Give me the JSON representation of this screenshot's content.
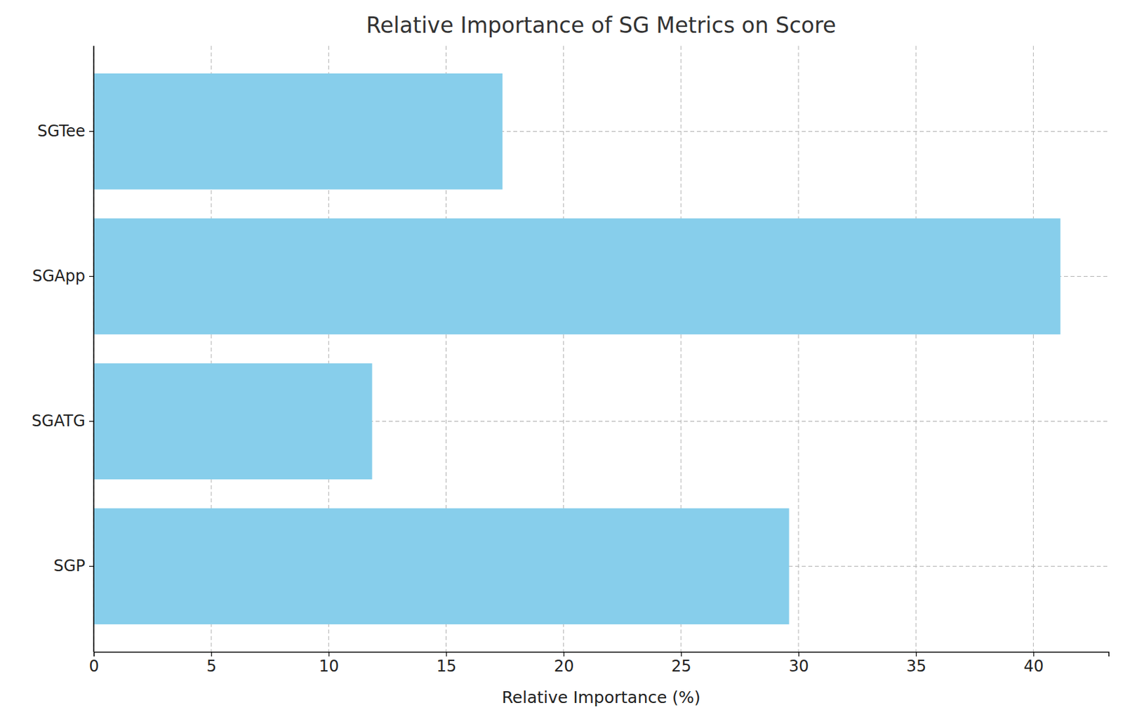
{
  "chart_data": {
    "type": "bar",
    "orientation": "horizontal",
    "title": "Relative Importance of SG Metrics on Score",
    "x_label": "Relative Importance (%)",
    "categories": [
      "SGP",
      "SGATG",
      "SGApp",
      "SGTee"
    ],
    "values": [
      29.6,
      11.85,
      41.15,
      17.4
    ],
    "color": "#87ceeb",
    "xlim": [
      0,
      43.2
    ],
    "xticks": [
      0,
      5,
      10,
      15,
      20,
      25,
      30,
      35,
      40
    ],
    "grid": true
  }
}
